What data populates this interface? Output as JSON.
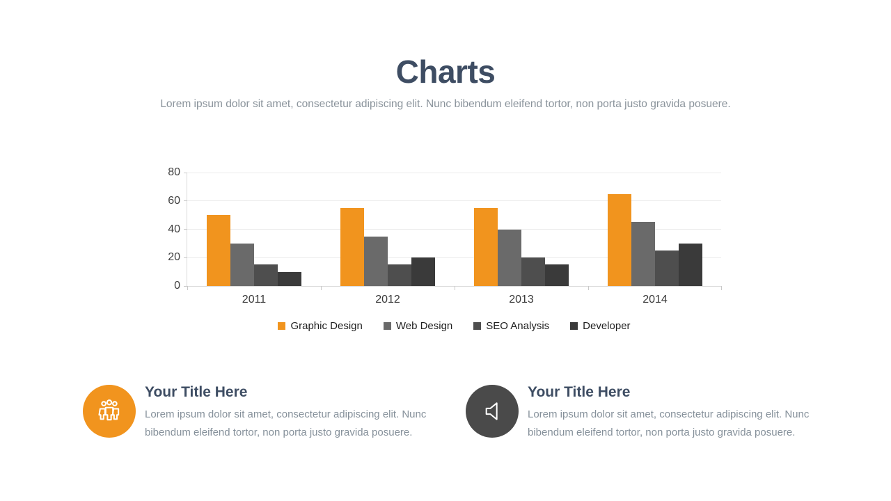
{
  "slide": {
    "title": "Charts",
    "subtitle": "Lorem ipsum dolor sit amet, consectetur adipiscing elit. Nunc bibendum eleifend tortor, non porta justo gravida posuere."
  },
  "chart_data": {
    "type": "bar",
    "categories": [
      "2011",
      "2012",
      "2013",
      "2014"
    ],
    "series": [
      {
        "name": "Graphic Design",
        "color": "#F1941E",
        "values": [
          50,
          55,
          55,
          65
        ]
      },
      {
        "name": "Web Design",
        "color": "#6A6A6A",
        "values": [
          30,
          35,
          40,
          45
        ]
      },
      {
        "name": "SEO Analysis",
        "color": "#4E4E4E",
        "values": [
          15,
          15,
          20,
          25
        ]
      },
      {
        "name": "Developer",
        "color": "#3A3A3A",
        "values": [
          10,
          20,
          15,
          30
        ]
      }
    ],
    "title": "Charts",
    "xlabel": "",
    "ylabel": "",
    "ylim": [
      0,
      80
    ],
    "yticks": [
      0,
      20,
      40,
      60,
      80
    ],
    "grid": true,
    "legend_position": "bottom"
  },
  "features": [
    {
      "icon": "people-icon",
      "icon_bg": "#F1941E",
      "title": "Your Title Here",
      "body": "Lorem ipsum dolor sit amet, consectetur adipiscing elit. Nunc bibendum eleifend tortor, non porta justo gravida posuere."
    },
    {
      "icon": "speaker-icon",
      "icon_bg": "#4A4A4A",
      "title": "Your Title Here",
      "body": "Lorem ipsum dolor sit amet, consectetur adipiscing elit. Nunc bibendum eleifend tortor, non porta justo gravida posuere."
    }
  ],
  "colors": {
    "title_text": "#3E4D63",
    "body_text": "#85909A",
    "accent_orange": "#F1941E",
    "dark_circle": "#4A4A4A",
    "gridline": "#EBEBEB",
    "axis_line": "#D9D9D9"
  }
}
